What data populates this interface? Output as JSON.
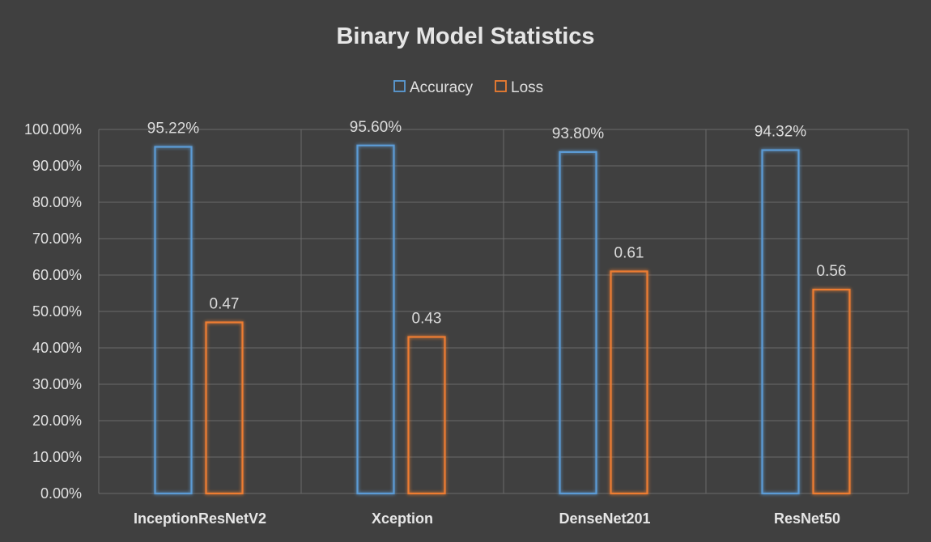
{
  "chart_data": {
    "type": "bar",
    "title": "Binary Model Statistics",
    "categories": [
      "InceptionResNetV2",
      "Xception",
      "DenseNet201",
      "ResNet50"
    ],
    "series": [
      {
        "name": "Accuracy",
        "color": "#5b9bd5",
        "values": [
          0.9522,
          0.956,
          0.938,
          0.9432
        ],
        "labels": [
          "95.22%",
          "95.60%",
          "93.80%",
          "94.32%"
        ]
      },
      {
        "name": "Loss",
        "color": "#ed7d31",
        "values": [
          0.47,
          0.43,
          0.61,
          0.56
        ],
        "labels": [
          "0.47",
          "0.43",
          "0.61",
          "0.56"
        ]
      }
    ],
    "y_ticks": [
      "0.00%",
      "10.00%",
      "20.00%",
      "30.00%",
      "40.00%",
      "50.00%",
      "60.00%",
      "70.00%",
      "80.00%",
      "90.00%",
      "100.00%"
    ],
    "ylim": [
      0,
      1
    ],
    "grid": true,
    "legend_position": "top"
  }
}
